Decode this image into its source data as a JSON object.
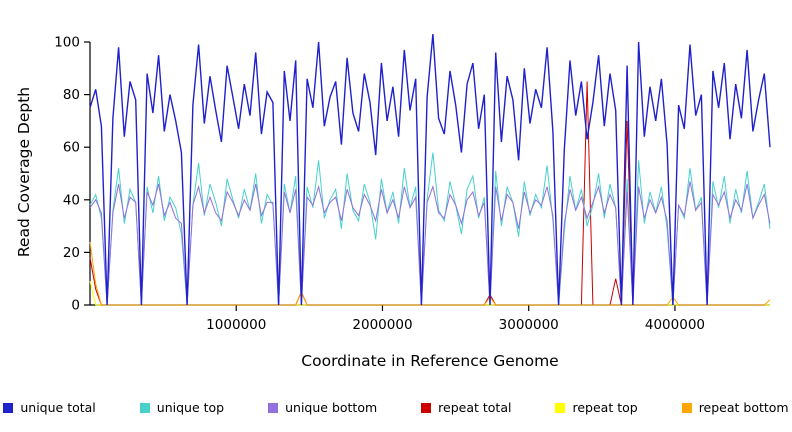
{
  "chart_data": {
    "type": "line",
    "title": "",
    "xlabel": "Coordinate in Reference Genome",
    "ylabel": "Read Coverage Depth",
    "xlim": [
      0,
      4650000
    ],
    "ylim": [
      0,
      105
    ],
    "xticks": [
      1000000,
      2000000,
      3000000,
      4000000
    ],
    "xtick_labels": [
      "1000000",
      "2000000",
      "3000000",
      "4000000"
    ],
    "yticks": [
      0,
      20,
      40,
      60,
      80,
      100
    ],
    "grid": false,
    "legend_position": "bottom",
    "n_points": 120,
    "series": [
      {
        "name": "unique total",
        "color": "#2121CC",
        "values": [
          75,
          82,
          68,
          0,
          71,
          98,
          64,
          85,
          78,
          0,
          88,
          73,
          95,
          66,
          80,
          70,
          58,
          0,
          76,
          99,
          69,
          87,
          74,
          62,
          91,
          79,
          67,
          84,
          72,
          96,
          65,
          81,
          77,
          0,
          89,
          70,
          93,
          0,
          86,
          75,
          100,
          68,
          79,
          85,
          61,
          94,
          73,
          66,
          88,
          77,
          57,
          92,
          70,
          83,
          64,
          97,
          74,
          86,
          0,
          79,
          103,
          71,
          65,
          89,
          76,
          58,
          84,
          92,
          67,
          80,
          0,
          96,
          62,
          87,
          78,
          55,
          90,
          69,
          82,
          75,
          98,
          66,
          0,
          59,
          93,
          72,
          85,
          63,
          77,
          95,
          68,
          88,
          74,
          0,
          91,
          0,
          100,
          64,
          83,
          70,
          86,
          61,
          0,
          76,
          67,
          99,
          72,
          80,
          0,
          89,
          75,
          92,
          63,
          84,
          71,
          97,
          66,
          78,
          88,
          60
        ]
      },
      {
        "name": "unique top",
        "color": "#48D1CC",
        "values": [
          38,
          42,
          33,
          0,
          36,
          52,
          31,
          44,
          39,
          0,
          45,
          35,
          49,
          32,
          41,
          37,
          27,
          0,
          38,
          54,
          34,
          46,
          39,
          30,
          48,
          40,
          33,
          44,
          36,
          50,
          31,
          42,
          38,
          0,
          46,
          35,
          49,
          0,
          45,
          37,
          55,
          33,
          40,
          44,
          29,
          50,
          36,
          32,
          46,
          39,
          25,
          48,
          35,
          43,
          31,
          52,
          37,
          45,
          0,
          40,
          58,
          36,
          32,
          47,
          38,
          27,
          44,
          49,
          33,
          41,
          0,
          51,
          30,
          45,
          39,
          26,
          47,
          34,
          42,
          37,
          53,
          32,
          0,
          28,
          49,
          36,
          44,
          30,
          38,
          50,
          33,
          46,
          37,
          0,
          48,
          0,
          55,
          31,
          43,
          35,
          45,
          29,
          0,
          38,
          33,
          52,
          36,
          41,
          0,
          47,
          37,
          49,
          31,
          44,
          35,
          51,
          33,
          39,
          46,
          29
        ]
      },
      {
        "name": "unique bottom",
        "color": "#9370DB",
        "values": [
          37,
          40,
          35,
          0,
          35,
          46,
          33,
          41,
          39,
          0,
          43,
          38,
          46,
          34,
          39,
          33,
          31,
          0,
          38,
          45,
          35,
          41,
          35,
          32,
          43,
          39,
          34,
          40,
          36,
          46,
          34,
          39,
          39,
          0,
          43,
          35,
          44,
          0,
          41,
          38,
          45,
          35,
          39,
          41,
          32,
          44,
          37,
          34,
          42,
          38,
          32,
          44,
          35,
          40,
          33,
          45,
          37,
          41,
          0,
          39,
          45,
          35,
          33,
          42,
          38,
          31,
          40,
          43,
          34,
          39,
          0,
          45,
          32,
          42,
          39,
          29,
          43,
          35,
          40,
          38,
          45,
          34,
          0,
          31,
          44,
          36,
          41,
          33,
          39,
          45,
          35,
          42,
          37,
          0,
          43,
          0,
          45,
          33,
          40,
          35,
          41,
          32,
          0,
          38,
          34,
          47,
          36,
          39,
          0,
          42,
          38,
          43,
          33,
          40,
          36,
          46,
          33,
          38,
          42,
          31
        ]
      },
      {
        "name": "repeat total",
        "color": "#CC0000",
        "values": [
          18,
          6,
          0,
          0,
          0,
          0,
          0,
          0,
          0,
          0,
          0,
          0,
          0,
          0,
          0,
          0,
          0,
          0,
          0,
          0,
          0,
          0,
          0,
          0,
          0,
          0,
          0,
          0,
          0,
          0,
          0,
          0,
          0,
          0,
          0,
          0,
          0,
          5,
          0,
          0,
          0,
          0,
          0,
          0,
          0,
          0,
          0,
          0,
          0,
          0,
          0,
          0,
          0,
          0,
          0,
          0,
          0,
          0,
          0,
          0,
          0,
          0,
          0,
          0,
          0,
          0,
          0,
          0,
          0,
          0,
          4,
          0,
          0,
          0,
          0,
          0,
          0,
          0,
          0,
          0,
          0,
          0,
          0,
          0,
          0,
          0,
          0,
          85,
          0,
          0,
          0,
          0,
          10,
          0,
          70,
          0,
          0,
          0,
          0,
          0,
          0,
          0,
          0,
          0,
          0,
          0,
          0,
          0,
          0,
          0,
          0,
          0,
          0,
          0,
          0,
          0,
          0,
          0,
          0,
          0
        ]
      },
      {
        "name": "repeat top",
        "color": "#FFFF00",
        "values": [
          9,
          0,
          0,
          0,
          0,
          0,
          0,
          0,
          0,
          0,
          0,
          0,
          0,
          0,
          0,
          0,
          0,
          0,
          0,
          0,
          0,
          0,
          0,
          0,
          0,
          0,
          0,
          0,
          0,
          0,
          0,
          0,
          0,
          0,
          0,
          0,
          0,
          0,
          0,
          0,
          0,
          0,
          0,
          0,
          0,
          0,
          0,
          0,
          0,
          0,
          0,
          0,
          0,
          0,
          0,
          0,
          0,
          0,
          0,
          0,
          0,
          0,
          0,
          0,
          0,
          0,
          0,
          0,
          0,
          0,
          0,
          0,
          0,
          0,
          0,
          0,
          0,
          0,
          0,
          0,
          0,
          0,
          0,
          0,
          0,
          0,
          0,
          0,
          0,
          0,
          0,
          0,
          0,
          0,
          0,
          0,
          0,
          0,
          0,
          0,
          0,
          0,
          0,
          0,
          0,
          0,
          0,
          0,
          0,
          0,
          0,
          0,
          0,
          0,
          0,
          0,
          0,
          0,
          0,
          0
        ]
      },
      {
        "name": "repeat bottom",
        "color": "#FFA500",
        "values": [
          24,
          8,
          0,
          0,
          0,
          0,
          0,
          0,
          0,
          0,
          0,
          0,
          0,
          0,
          0,
          0,
          0,
          0,
          0,
          0,
          0,
          0,
          0,
          0,
          0,
          0,
          0,
          0,
          0,
          0,
          0,
          0,
          0,
          0,
          0,
          0,
          0,
          5,
          0,
          0,
          0,
          0,
          0,
          0,
          0,
          0,
          0,
          0,
          0,
          0,
          0,
          0,
          0,
          0,
          0,
          0,
          0,
          0,
          0,
          0,
          0,
          0,
          0,
          0,
          0,
          0,
          0,
          0,
          0,
          0,
          3,
          0,
          0,
          0,
          0,
          0,
          0,
          0,
          0,
          0,
          0,
          0,
          0,
          0,
          0,
          0,
          0,
          0,
          0,
          0,
          0,
          0,
          0,
          0,
          0,
          0,
          0,
          0,
          0,
          0,
          0,
          0,
          3,
          0,
          0,
          0,
          0,
          0,
          0,
          0,
          0,
          0,
          0,
          0,
          0,
          0,
          0,
          0,
          0,
          2
        ]
      }
    ]
  }
}
